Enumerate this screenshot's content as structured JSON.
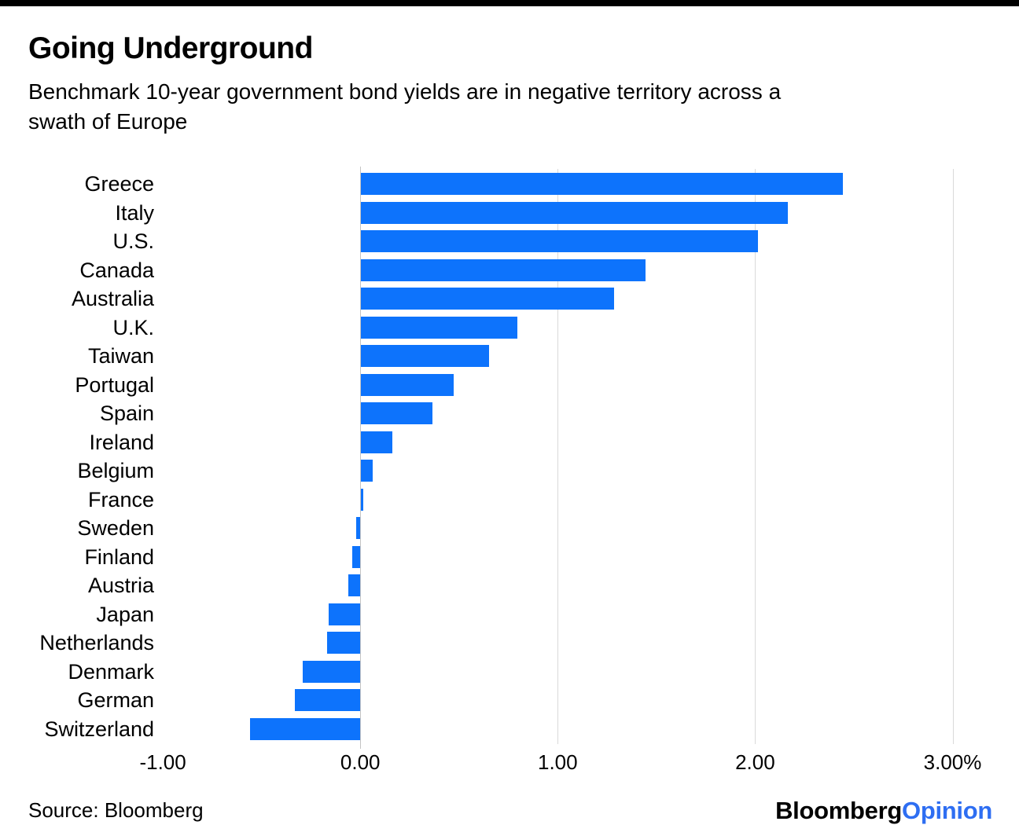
{
  "header": {
    "title": "Going Underground",
    "subtitle_line1": "Benchmark 10-year government bond yields are in negative territory across a",
    "subtitle_line2": "swath of Europe"
  },
  "chart_data": {
    "type": "bar",
    "orientation": "horizontal",
    "title": "Going Underground",
    "subtitle": "Benchmark 10-year government bond yields are in negative territory across a swath of Europe",
    "unit": "%",
    "categories": [
      "Greece",
      "Italy",
      "U.S.",
      "Canada",
      "Australia",
      "U.K.",
      "Taiwan",
      "Portugal",
      "Spain",
      "Ireland",
      "Belgium",
      "France",
      "Sweden",
      "Finland",
      "Austria",
      "Japan",
      "Netherlands",
      "Denmark",
      "German",
      "Switzerland"
    ],
    "values": [
      2.44,
      2.16,
      2.01,
      1.44,
      1.28,
      0.79,
      0.65,
      0.47,
      0.36,
      0.16,
      0.06,
      0.01,
      -0.02,
      -0.04,
      -0.06,
      -0.16,
      -0.17,
      -0.29,
      -0.33,
      -0.56
    ],
    "xlim": [
      -1.1675,
      3.018
    ],
    "x_ticks": [
      {
        "value": -1,
        "label": "-1.00"
      },
      {
        "value": 0,
        "label": "0.00"
      },
      {
        "value": 1,
        "label": "1.00"
      },
      {
        "value": 2,
        "label": "2.00"
      },
      {
        "value": 3,
        "label": "3.00%"
      }
    ],
    "gridline_values": [
      1,
      2,
      3
    ],
    "bar_color": "#0d73fc",
    "gridline_color": "#d9d9d9",
    "legend": "none",
    "grid": "vertical-only"
  },
  "footer": {
    "source": "Source: Bloomberg",
    "logo": {
      "part1": "Bloomberg",
      "part2": "Opinion",
      "part2_color": "#2e6ef2"
    }
  }
}
